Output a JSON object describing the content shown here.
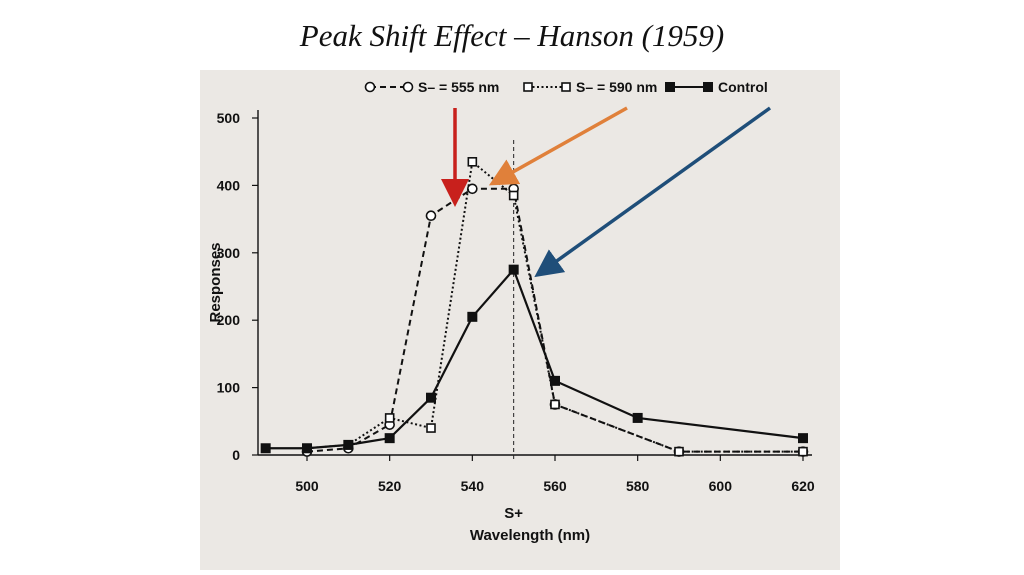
{
  "slide": {
    "title": "Peak Shift Effect – Hanson (1959)"
  },
  "chart_data": {
    "type": "line",
    "xlabel": "Wavelength (nm)",
    "ylabel": "Responses",
    "x_ticks": [
      500,
      520,
      540,
      560,
      580,
      600,
      620
    ],
    "y_ticks": [
      0,
      100,
      200,
      300,
      400,
      500
    ],
    "xlim": [
      490,
      622
    ],
    "ylim": [
      0,
      520
    ],
    "reference_line": {
      "x": 550,
      "label": "S+"
    },
    "series": [
      {
        "name": "S– = 555 nm",
        "style": "dashed",
        "marker": "open-circle",
        "color": "#111111",
        "x": [
          500,
          510,
          520,
          530,
          540,
          550,
          560,
          590,
          620
        ],
        "y": [
          5,
          10,
          45,
          355,
          395,
          395,
          75,
          5,
          5
        ]
      },
      {
        "name": "S– = 590 nm",
        "style": "dotted",
        "marker": "open-square",
        "color": "#111111",
        "x": [
          500,
          510,
          520,
          530,
          540,
          550,
          560,
          590,
          620
        ],
        "y": [
          10,
          15,
          55,
          40,
          435,
          385,
          75,
          5,
          5
        ]
      },
      {
        "name": "Control",
        "style": "solid",
        "marker": "filled-square",
        "color": "#111111",
        "x": [
          490,
          500,
          510,
          520,
          530,
          540,
          550,
          560,
          580,
          620
        ],
        "y": [
          10,
          10,
          15,
          25,
          85,
          205,
          275,
          110,
          55,
          25
        ]
      }
    ],
    "arrows": [
      {
        "color": "#c8201c",
        "points_to": "S– = 555 nm"
      },
      {
        "color": "#e0803a",
        "points_to": "S– = 590 nm"
      },
      {
        "color": "#1f4e79",
        "points_to": "Control"
      }
    ],
    "grid": false,
    "legend_position": "top"
  }
}
